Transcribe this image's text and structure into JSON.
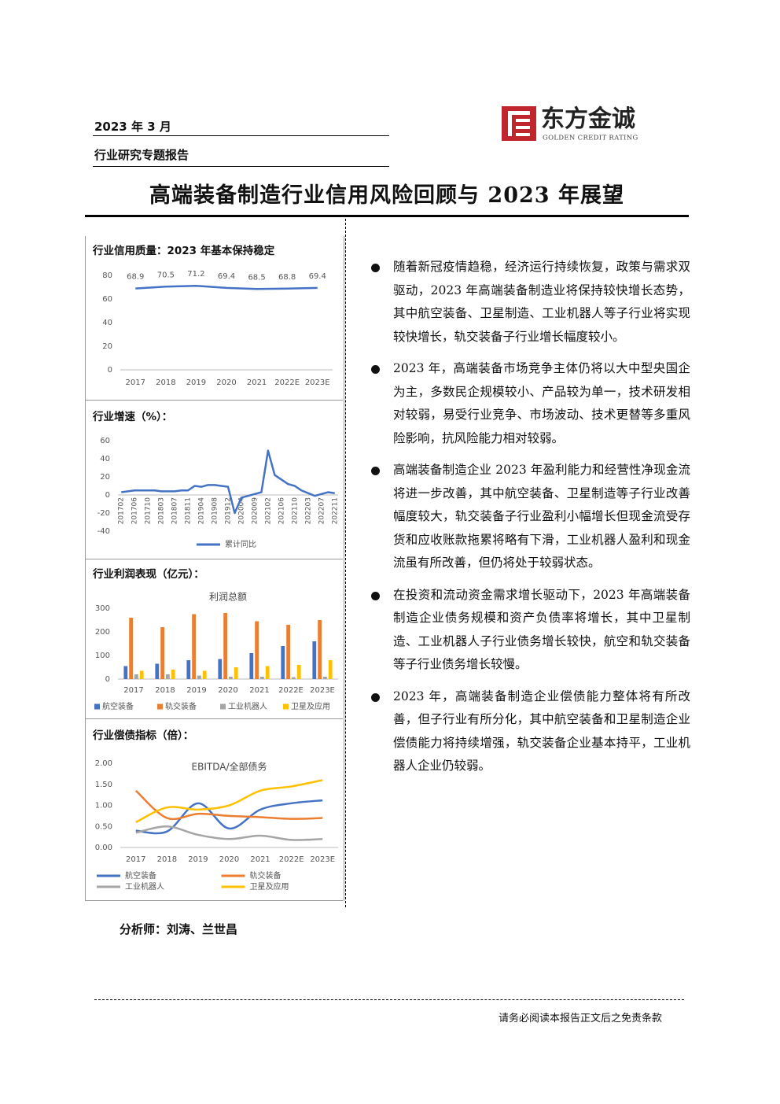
{
  "header": {
    "date": "2023 年 3 月",
    "report_type": "行业研究专题报告",
    "logo_name": "东方金诚",
    "logo_sub": "GOLDEN CREDIT RATING"
  },
  "title": "高端装备制造行业信用风险回顾与 2023 年展望",
  "chart_data": [
    {
      "type": "line",
      "heading": "行业信用质量：2023 年基本保持稳定",
      "categories": [
        "2017",
        "2018",
        "2019",
        "2020",
        "2021",
        "2022E",
        "2023E"
      ],
      "values": [
        68.9,
        70.5,
        71.2,
        69.4,
        68.5,
        68.8,
        69.4
      ],
      "color": "#4472c4",
      "data_labels": true,
      "ylim": [
        0,
        80
      ],
      "yticks": [
        0,
        20,
        40,
        60,
        80
      ],
      "grid": false
    },
    {
      "type": "line",
      "heading": "行业增速（%）：",
      "categories": [
        "201702",
        null,
        "201706",
        null,
        "201710",
        null,
        "201803",
        null,
        "201807",
        null,
        "201811",
        null,
        "201904",
        null,
        "201908",
        null,
        "201912",
        null,
        "202004",
        null,
        "202009",
        null,
        "202102",
        null,
        "202106",
        null,
        "202110",
        null,
        "202203",
        null,
        "202207",
        null,
        "202211"
      ],
      "series": [
        {
          "name": "累计同比",
          "color": "#4472c4",
          "values": [
            3,
            4,
            5,
            5,
            5,
            5,
            4,
            4,
            4,
            5,
            5,
            10,
            9,
            11,
            11,
            10,
            9,
            -20,
            -3,
            -1,
            1,
            3,
            49,
            22,
            17,
            12,
            10,
            5,
            2,
            -1,
            1,
            3,
            2
          ]
        }
      ],
      "ylim": [
        -40,
        60
      ],
      "yticks": [
        -40,
        -20,
        0,
        20,
        40,
        60
      ],
      "grid": false
    },
    {
      "type": "bar",
      "heading": "行业利润表现（亿元）：",
      "title": "利润总额",
      "categories": [
        "2017",
        "2018",
        "2019",
        "2020",
        "2021",
        "2022E",
        "2023E"
      ],
      "series": [
        {
          "name": "航空装备",
          "color": "#4472c4",
          "values": [
            55,
            65,
            80,
            85,
            110,
            140,
            160
          ]
        },
        {
          "name": "轨交装备",
          "color": "#ed7d31",
          "values": [
            260,
            220,
            275,
            280,
            245,
            230,
            250
          ]
        },
        {
          "name": "工业机器人",
          "color": "#a5a5a5",
          "values": [
            20,
            20,
            15,
            10,
            10,
            8,
            10
          ]
        },
        {
          "name": "卫星及应用",
          "color": "#ffc000",
          "values": [
            35,
            40,
            35,
            50,
            55,
            60,
            80
          ]
        }
      ],
      "ylim": [
        0,
        300
      ],
      "yticks": [
        0,
        100,
        200,
        300
      ],
      "grid": false
    },
    {
      "type": "line",
      "heading": "行业偿债指标（倍）：",
      "title": "EBITDA/全部债务",
      "smooth": true,
      "categories": [
        "2017",
        "2018",
        "2019",
        "2020",
        "2021",
        "2022E",
        "2023E"
      ],
      "series": [
        {
          "name": "航空装备",
          "color": "#4472c4",
          "values": [
            0.4,
            0.38,
            1.05,
            0.45,
            0.9,
            1.05,
            1.12
          ]
        },
        {
          "name": "轨交装备",
          "color": "#ed7d31",
          "values": [
            1.35,
            0.7,
            0.8,
            0.75,
            0.72,
            0.68,
            0.7
          ]
        },
        {
          "name": "工业机器人",
          "color": "#a5a5a5",
          "values": [
            0.35,
            0.5,
            0.3,
            0.2,
            0.28,
            0.18,
            0.2
          ]
        },
        {
          "name": "卫星及应用",
          "color": "#ffc000",
          "values": [
            0.6,
            0.95,
            0.9,
            1.0,
            1.35,
            1.45,
            1.6
          ]
        }
      ],
      "ylim": [
        0,
        2
      ],
      "yticks": [
        {
          "value": 0,
          "label": "0.00"
        },
        {
          "value": 0.5,
          "label": "0.50"
        },
        {
          "value": 1,
          "label": "1.00"
        },
        {
          "value": 1.5,
          "label": "1.50"
        },
        {
          "value": 2,
          "label": "2.00"
        }
      ],
      "grid": false
    }
  ],
  "bullets": [
    "随着新冠疫情趋稳，经济运行持续恢复，政策与需求双驱动，2023 年高端装备制造业将保持较快增长态势，其中航空装备、卫星制造、工业机器人等子行业将实现较快增长，轨交装备子行业增长幅度较小。",
    "2023 年，高端装备市场竞争主体仍将以大中型央国企为主，多数民企规模较小、产品较为单一，技术研发相对较弱，易受行业竞争、市场波动、技术更替等多重风险影响，抗风险能力相对较弱。",
    "高端装备制造企业 2023 年盈利能力和经营性净现金流将进一步改善，其中航空装备、卫星制造等子行业改善幅度较大，轨交装备子行业盈利小幅增长但现金流受存货和应收账款拖累将略有下滑，工业机器人盈利和现金流虽有所改善，但仍将处于较弱状态。",
    "在投资和流动资金需求增长驱动下，2023 年高端装备制造企业债务规模和资产负债率将增长，其中卫星制造、工业机器人子行业债务增长较快，航空和轨交装备等子行业债务增长较慢。",
    "2023 年，高端装备制造企业偿债能力整体将有所改善，但子行业有所分化，其中航空装备和卫星制造企业偿债能力将持续增强，轨交装备企业基本持平，工业机器人企业仍较弱。"
  ],
  "analyst": "分析师：刘涛、兰世昌",
  "footer": "请务必阅读本报告正文后之免责条款"
}
